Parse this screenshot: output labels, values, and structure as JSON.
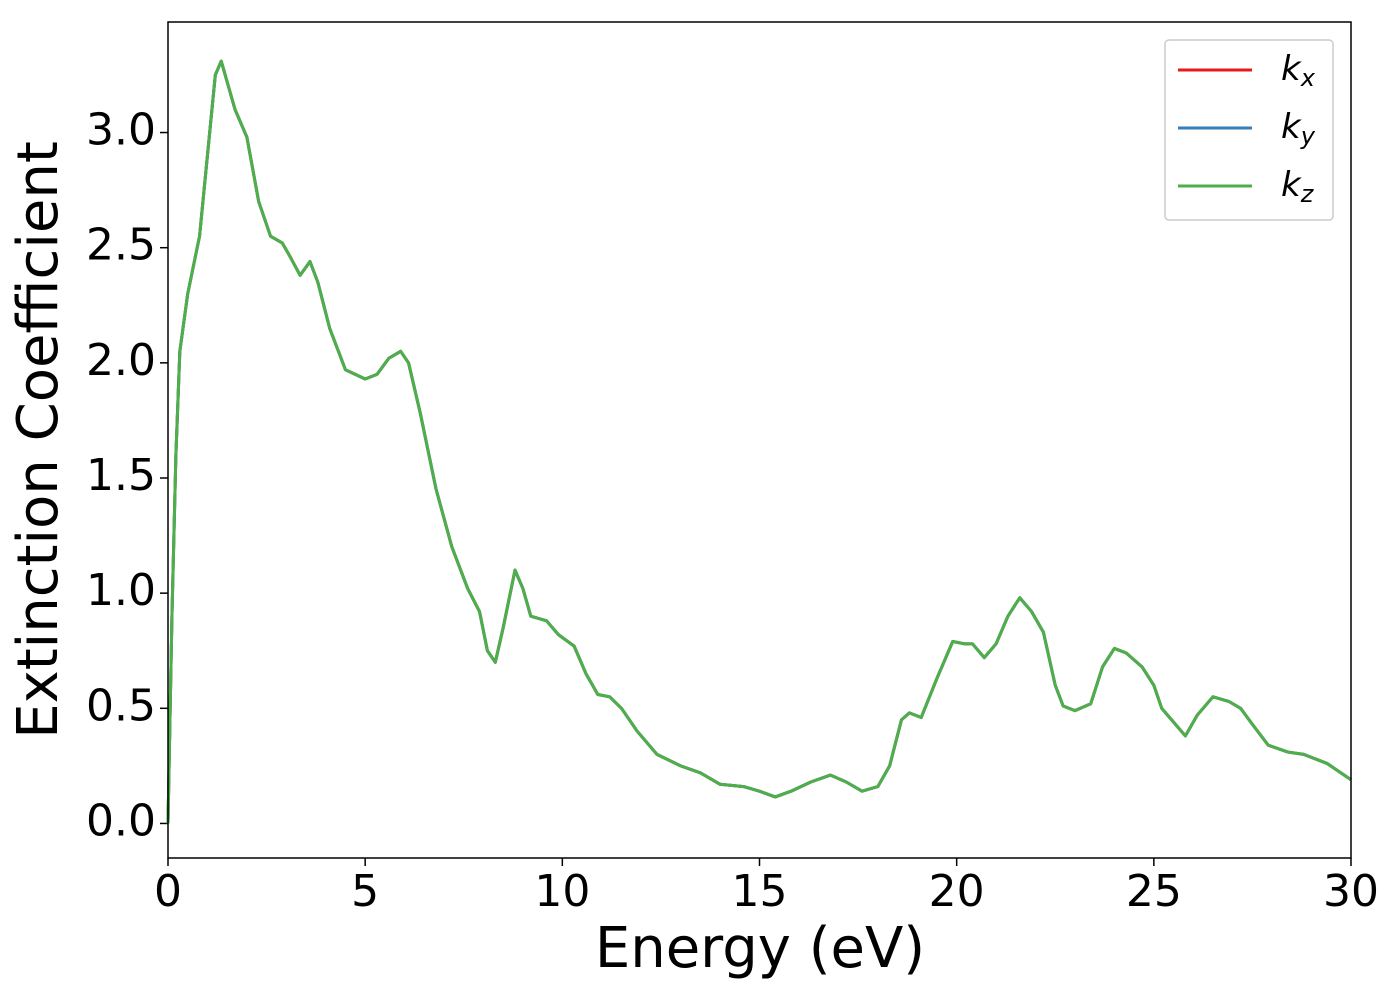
{
  "chart_data": {
    "type": "line",
    "xlabel": "Energy (eV)",
    "ylabel": "Extinction Coefficient",
    "x": [
      0,
      0.1,
      0.2,
      0.3,
      0.5,
      0.8,
      1.0,
      1.2,
      1.35,
      1.5,
      1.7,
      2.0,
      2.3,
      2.6,
      2.9,
      3.1,
      3.35,
      3.6,
      3.8,
      4.1,
      4.5,
      5.0,
      5.3,
      5.6,
      5.9,
      6.1,
      6.4,
      6.8,
      7.2,
      7.6,
      7.9,
      8.1,
      8.3,
      8.5,
      8.8,
      9.0,
      9.2,
      9.6,
      9.9,
      10.3,
      10.6,
      10.9,
      11.2,
      11.5,
      11.9,
      12.4,
      13.0,
      13.5,
      14.0,
      14.6,
      15.0,
      15.4,
      15.8,
      16.3,
      16.8,
      17.2,
      17.6,
      18.0,
      18.3,
      18.6,
      18.8,
      19.1,
      19.5,
      19.9,
      20.2,
      20.4,
      20.7,
      21.0,
      21.3,
      21.6,
      21.9,
      22.2,
      22.5,
      22.7,
      23.0,
      23.4,
      23.7,
      24.0,
      24.3,
      24.7,
      25.0,
      25.2,
      25.5,
      25.8,
      26.1,
      26.5,
      26.9,
      27.2,
      27.5,
      27.9,
      28.4,
      28.8,
      29.4,
      30.0
    ],
    "series": [
      {
        "name": "kx",
        "color": "#e41a1c",
        "values": [
          0,
          0.9,
          1.6,
          2.05,
          2.3,
          2.55,
          2.9,
          3.25,
          3.31,
          3.22,
          3.1,
          2.98,
          2.7,
          2.55,
          2.52,
          2.46,
          2.38,
          2.44,
          2.35,
          2.15,
          1.97,
          1.93,
          1.95,
          2.02,
          2.05,
          2.0,
          1.78,
          1.45,
          1.2,
          1.02,
          0.92,
          0.75,
          0.7,
          0.85,
          1.1,
          1.02,
          0.9,
          0.88,
          0.82,
          0.77,
          0.65,
          0.56,
          0.55,
          0.5,
          0.4,
          0.3,
          0.25,
          0.22,
          0.17,
          0.16,
          0.14,
          0.115,
          0.14,
          0.18,
          0.21,
          0.18,
          0.14,
          0.16,
          0.25,
          0.45,
          0.48,
          0.46,
          0.63,
          0.79,
          0.78,
          0.78,
          0.72,
          0.78,
          0.9,
          0.98,
          0.92,
          0.83,
          0.6,
          0.51,
          0.49,
          0.52,
          0.68,
          0.76,
          0.74,
          0.68,
          0.6,
          0.5,
          0.44,
          0.38,
          0.47,
          0.55,
          0.53,
          0.5,
          0.43,
          0.34,
          0.31,
          0.3,
          0.26,
          0.19
        ]
      },
      {
        "name": "ky",
        "color": "#377eb8",
        "values": [
          0,
          0.9,
          1.6,
          2.05,
          2.3,
          2.55,
          2.9,
          3.25,
          3.31,
          3.22,
          3.1,
          2.98,
          2.7,
          2.55,
          2.52,
          2.46,
          2.38,
          2.44,
          2.35,
          2.15,
          1.97,
          1.93,
          1.95,
          2.02,
          2.05,
          2.0,
          1.78,
          1.45,
          1.2,
          1.02,
          0.92,
          0.75,
          0.7,
          0.85,
          1.1,
          1.02,
          0.9,
          0.88,
          0.82,
          0.77,
          0.65,
          0.56,
          0.55,
          0.5,
          0.4,
          0.3,
          0.25,
          0.22,
          0.17,
          0.16,
          0.14,
          0.115,
          0.14,
          0.18,
          0.21,
          0.18,
          0.14,
          0.16,
          0.25,
          0.45,
          0.48,
          0.46,
          0.63,
          0.79,
          0.78,
          0.78,
          0.72,
          0.78,
          0.9,
          0.98,
          0.92,
          0.83,
          0.6,
          0.51,
          0.49,
          0.52,
          0.68,
          0.76,
          0.74,
          0.68,
          0.6,
          0.5,
          0.44,
          0.38,
          0.47,
          0.55,
          0.53,
          0.5,
          0.43,
          0.34,
          0.31,
          0.3,
          0.26,
          0.19
        ]
      },
      {
        "name": "kz",
        "color": "#4daf4a",
        "values": [
          0,
          0.9,
          1.6,
          2.05,
          2.3,
          2.55,
          2.9,
          3.25,
          3.31,
          3.22,
          3.1,
          2.98,
          2.7,
          2.55,
          2.52,
          2.46,
          2.38,
          2.44,
          2.35,
          2.15,
          1.97,
          1.93,
          1.95,
          2.02,
          2.05,
          2.0,
          1.78,
          1.45,
          1.2,
          1.02,
          0.92,
          0.75,
          0.7,
          0.85,
          1.1,
          1.02,
          0.9,
          0.88,
          0.82,
          0.77,
          0.65,
          0.56,
          0.55,
          0.5,
          0.4,
          0.3,
          0.25,
          0.22,
          0.17,
          0.16,
          0.14,
          0.115,
          0.14,
          0.18,
          0.21,
          0.18,
          0.14,
          0.16,
          0.25,
          0.45,
          0.48,
          0.46,
          0.63,
          0.79,
          0.78,
          0.78,
          0.72,
          0.78,
          0.9,
          0.98,
          0.92,
          0.83,
          0.6,
          0.51,
          0.49,
          0.52,
          0.68,
          0.76,
          0.74,
          0.68,
          0.6,
          0.5,
          0.44,
          0.38,
          0.47,
          0.55,
          0.53,
          0.5,
          0.43,
          0.34,
          0.31,
          0.3,
          0.26,
          0.19
        ]
      }
    ],
    "xlim": [
      0,
      30
    ],
    "xticks": [
      0,
      5,
      10,
      15,
      20,
      25,
      30
    ],
    "ylim": [
      -0.15,
      3.48
    ],
    "yticks": [
      {
        "value": 0,
        "label": "0.0"
      },
      0.5,
      {
        "value": 1,
        "label": "1.0"
      },
      1.5,
      {
        "value": 2,
        "label": "2.0"
      },
      2.5,
      {
        "value": 3,
        "label": "3.0"
      }
    ],
    "grid": false,
    "legend": "upper right"
  }
}
